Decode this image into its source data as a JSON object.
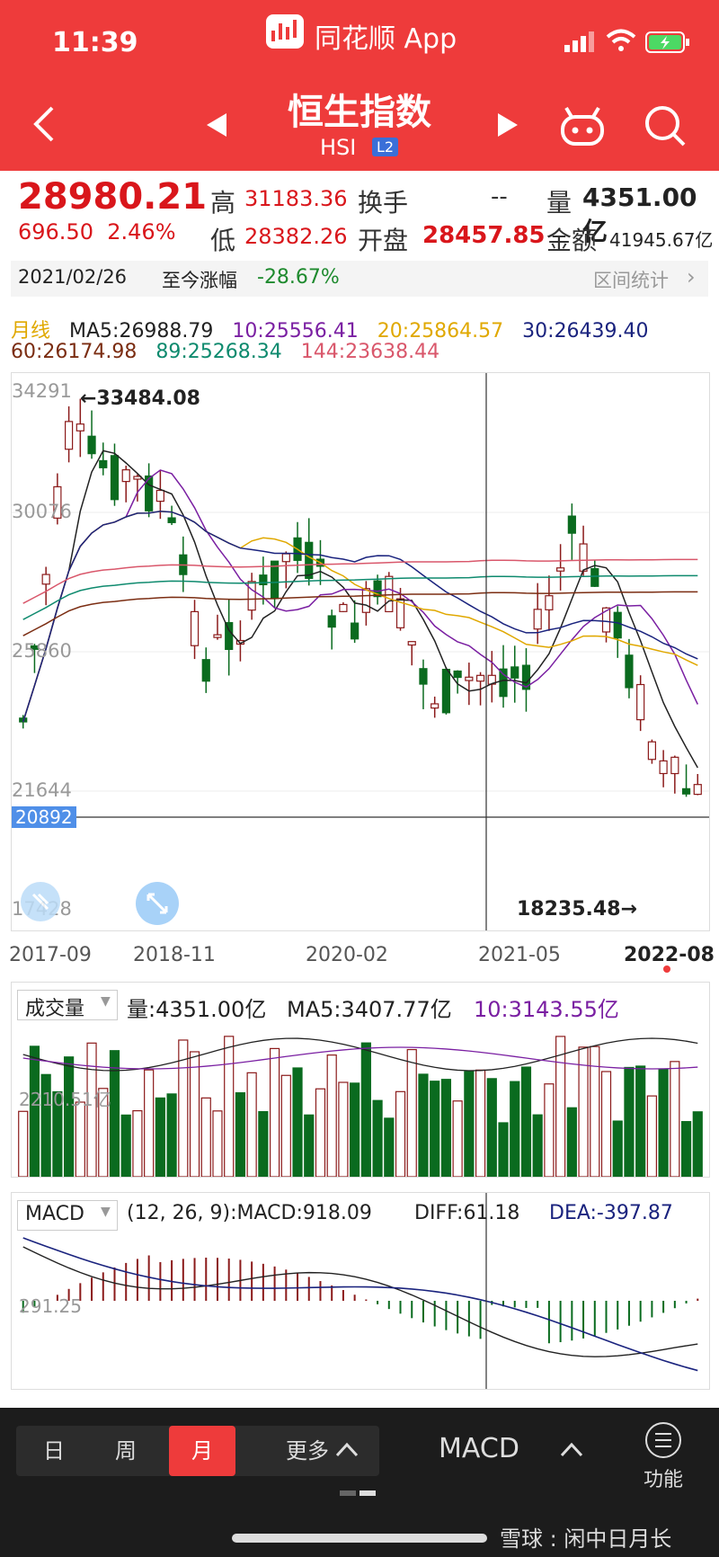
{
  "status": {
    "time": "11:39",
    "app_name": "同花顺 App"
  },
  "header": {
    "title": "恒生指数",
    "code": "HSI",
    "level": "L2"
  },
  "quote": {
    "price": "28980.21",
    "change": "696.50",
    "change_pct": "2.46%",
    "high_label": "高",
    "high": "31183.36",
    "low_label": "低",
    "low": "28382.26",
    "turnover_label": "换手",
    "turnover": "--",
    "open_label": "开盘",
    "open": "28457.85",
    "volume_label": "量",
    "volume": "4351.00亿",
    "amount_label": "金额",
    "amount": "41945.67亿"
  },
  "range": {
    "date": "2021/02/26",
    "label": "至今涨幅",
    "value": "-28.67%",
    "stats": "区间统计"
  },
  "ma_legend": {
    "period": "月线",
    "items": [
      {
        "text": "MA5:26988.79",
        "color": "#222222"
      },
      {
        "text": "10:25556.41",
        "color": "#7a1fa2"
      },
      {
        "text": "20:25864.57",
        "color": "#e0a800"
      },
      {
        "text": "30:26439.40",
        "color": "#1a237e"
      },
      {
        "text": "60:26174.98",
        "color": "#7b2d12"
      },
      {
        "text": "89:25268.34",
        "color": "#0e8a6e"
      },
      {
        "text": "144:23638.44",
        "color": "#d9576b"
      }
    ]
  },
  "kline": {
    "y_labels": [
      "34291",
      "30076",
      "25860",
      "21644",
      "17428"
    ],
    "cursor_price": "20892",
    "max_label": "←33484.08",
    "min_label": "18235.48→",
    "x_labels": [
      "2017-09",
      "2018-11",
      "2020-02",
      "2021-05",
      "2022-08"
    ]
  },
  "volume": {
    "selector": "成交量",
    "value": "量:4351.00亿",
    "ma5": "MA5:3407.77亿",
    "ma10": "10:3143.55亿",
    "axis_label": "2210.51亿"
  },
  "macd": {
    "selector": "MACD",
    "params": "(12, 26, 9):MACD:918.09",
    "diff": "DIFF:61.18",
    "dea": "DEA:-397.87",
    "axis_label": "291.25"
  },
  "bottom_nav": {
    "tabs": [
      "日",
      "周",
      "月",
      "更多"
    ],
    "indicator": "MACD",
    "function": "功能"
  },
  "watermark": "雪球 : 闲中日月长",
  "colors": {
    "up": "#8b1a1a",
    "down": "#0a6b1f",
    "header": "#ee3b3b"
  }
}
